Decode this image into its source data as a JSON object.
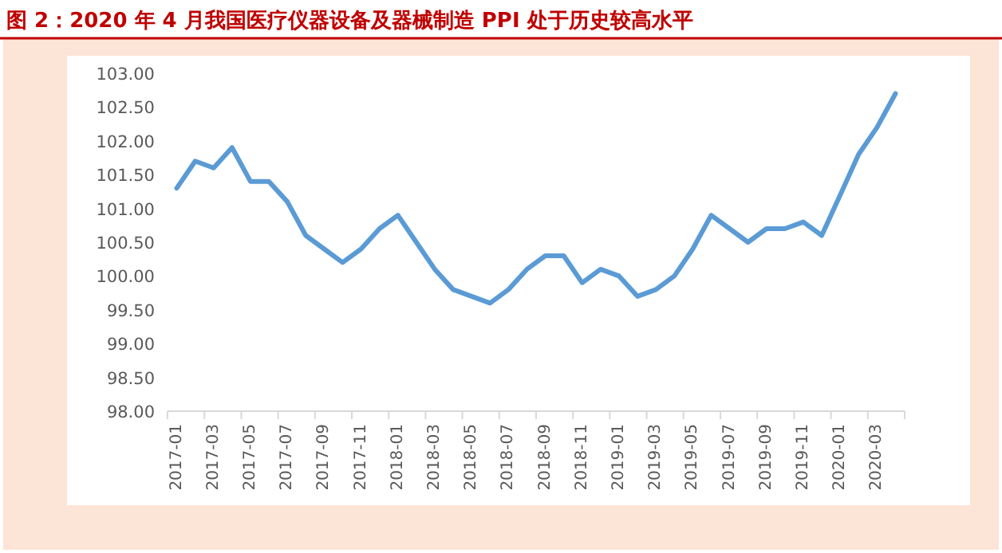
{
  "chart_data": {
    "type": "line",
    "title": "图 2：2020 年 4 月我国医疗仪器设备及器械制造 PPI 处于历史较高水平",
    "categories": [
      "2017-01",
      null,
      "2017-03",
      null,
      "2017-05",
      null,
      "2017-07",
      null,
      "2017-09",
      null,
      "2017-11",
      null,
      "2018-01",
      null,
      "2018-03",
      null,
      "2018-05",
      null,
      "2018-07",
      null,
      "2018-09",
      null,
      "2018-11",
      null,
      "2019-01",
      null,
      "2019-03",
      null,
      "2019-05",
      null,
      "2019-07",
      null,
      "2019-09",
      null,
      "2019-11",
      null,
      "2020-01",
      null,
      "2020-03",
      null
    ],
    "values": [
      101.3,
      101.7,
      101.6,
      101.9,
      101.4,
      101.4,
      101.1,
      100.6,
      100.4,
      100.2,
      100.4,
      100.7,
      100.9,
      100.5,
      100.1,
      99.8,
      99.7,
      99.6,
      99.8,
      100.1,
      100.3,
      100.3,
      99.9,
      100.1,
      100.0,
      99.7,
      99.8,
      100.0,
      100.4,
      100.9,
      100.7,
      100.5,
      100.7,
      100.7,
      100.8,
      100.6,
      101.2,
      101.8,
      102.2,
      102.7
    ],
    "color": "#5b9bd5",
    "ylim": [
      98,
      103
    ],
    "yticks": [
      {
        "value": 98,
        "label": "98.00"
      },
      {
        "value": 98.5,
        "label": "98.50"
      },
      {
        "value": 99,
        "label": "99.00"
      },
      {
        "value": 99.5,
        "label": "99.50"
      },
      {
        "value": 100,
        "label": "100.00"
      },
      {
        "value": 100.5,
        "label": "100.50"
      },
      {
        "value": 101,
        "label": "101.00"
      },
      {
        "value": 101.5,
        "label": "101.50"
      },
      {
        "value": 102,
        "label": "102.00"
      },
      {
        "value": 102.5,
        "label": "102.50"
      },
      {
        "value": 103,
        "label": "103.00"
      }
    ],
    "grid": false,
    "marker": "none",
    "line_style": "solid"
  }
}
